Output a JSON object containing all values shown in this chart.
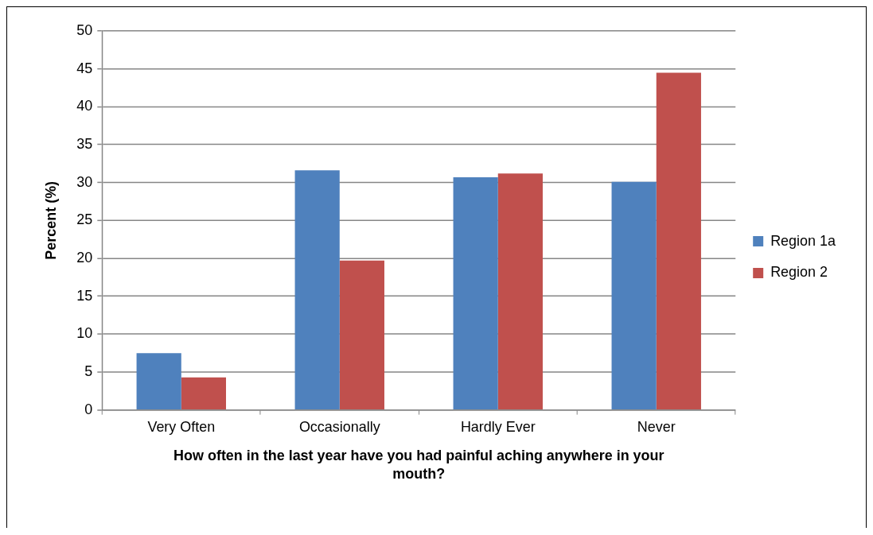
{
  "chart_data": {
    "type": "bar",
    "xlabel": "How often in the last year have you had painful aching anywhere in your mouth?",
    "ylabel": "Percent (%)",
    "categories": [
      "Very Often",
      "Occasionally",
      "Hardly Ever",
      "Never"
    ],
    "series": [
      {
        "name": "Region 1a",
        "color": "#4f81bd",
        "values": [
          7.5,
          31.6,
          30.7,
          30.1
        ]
      },
      {
        "name": "Region 2",
        "color": "#c0504d",
        "values": [
          4.3,
          19.7,
          31.2,
          44.5
        ]
      }
    ],
    "ylim": [
      0,
      50
    ],
    "yticks": [
      0,
      5,
      10,
      15,
      20,
      25,
      30,
      35,
      40,
      45,
      50
    ],
    "grid": "y",
    "legend": "right"
  }
}
